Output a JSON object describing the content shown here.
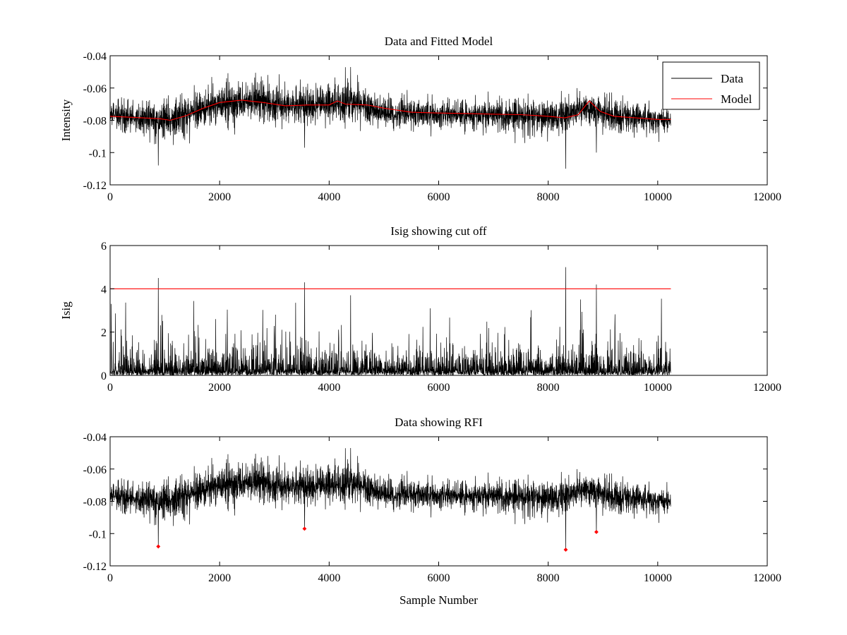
{
  "chart_data": [
    {
      "type": "line",
      "title": "Data and Fitted Model",
      "xlabel": "",
      "ylabel": "Intensity",
      "xlim": [
        0,
        12000
      ],
      "ylim": [
        -0.12,
        -0.04
      ],
      "xticks": [
        0,
        2000,
        4000,
        6000,
        8000,
        10000,
        12000
      ],
      "yticks": [
        -0.12,
        -0.1,
        -0.08,
        -0.06,
        -0.04
      ],
      "xtick_labels": [
        "0",
        "2000",
        "4000",
        "6000",
        "8000",
        "10000",
        "12000"
      ],
      "ytick_labels": [
        "-0.12",
        "-0.1",
        "-0.08",
        "-0.06",
        "-0.04"
      ],
      "legend": {
        "position": "top-right",
        "entries": [
          "Data",
          "Model"
        ]
      },
      "series": [
        {
          "name": "Data",
          "color": "#000000",
          "style": "noisy",
          "n_samples": 10240,
          "baseline": [
            [
              0,
              -0.077
            ],
            [
              1000,
              -0.08
            ],
            [
              2000,
              -0.07
            ],
            [
              2400,
              -0.068
            ],
            [
              3200,
              -0.071
            ],
            [
              4000,
              -0.07
            ],
            [
              4400,
              -0.069
            ],
            [
              5000,
              -0.075
            ],
            [
              6000,
              -0.076
            ],
            [
              7000,
              -0.077
            ],
            [
              8000,
              -0.078
            ],
            [
              8300,
              -0.077
            ],
            [
              8700,
              -0.072
            ],
            [
              9000,
              -0.077
            ],
            [
              10240,
              -0.08
            ]
          ],
          "envelope": [
            [
              0,
              -0.063,
              -0.092
            ],
            [
              800,
              -0.063,
              -0.101
            ],
            [
              2300,
              -0.049,
              -0.09
            ],
            [
              4400,
              -0.047,
              -0.09
            ],
            [
              6000,
              -0.063,
              -0.09
            ],
            [
              8300,
              -0.061,
              -0.106
            ],
            [
              8800,
              -0.058,
              -0.094
            ],
            [
              10240,
              -0.068,
              -0.095
            ]
          ],
          "spikes": [
            [
              880,
              -0.108
            ],
            [
              3550,
              -0.097
            ],
            [
              4390,
              -0.047
            ],
            [
              8320,
              -0.11
            ],
            [
              8880,
              -0.1
            ]
          ]
        },
        {
          "name": "Model",
          "color": "#ff0000",
          "x": [
            0,
            300,
            600,
            900,
            1100,
            1400,
            1700,
            2000,
            2400,
            2800,
            3200,
            3600,
            4000,
            4150,
            4300,
            4700,
            5000,
            5500,
            6000,
            6500,
            7000,
            7500,
            8000,
            8300,
            8550,
            8750,
            8950,
            9200,
            9600,
            10000,
            10240
          ],
          "y": [
            -0.0775,
            -0.078,
            -0.0785,
            -0.079,
            -0.08,
            -0.077,
            -0.0725,
            -0.069,
            -0.0675,
            -0.069,
            -0.071,
            -0.0705,
            -0.0705,
            -0.068,
            -0.07,
            -0.0705,
            -0.0725,
            -0.075,
            -0.0755,
            -0.0758,
            -0.0762,
            -0.0765,
            -0.0775,
            -0.0785,
            -0.0765,
            -0.068,
            -0.0745,
            -0.0775,
            -0.0785,
            -0.0795,
            -0.0795
          ]
        }
      ]
    },
    {
      "type": "line",
      "title": "Isig showing cut off",
      "xlabel": "",
      "ylabel": "Isig",
      "xlim": [
        0,
        12000
      ],
      "ylim": [
        0,
        6
      ],
      "xticks": [
        0,
        2000,
        4000,
        6000,
        8000,
        10000,
        12000
      ],
      "yticks": [
        0,
        2,
        4,
        6
      ],
      "xtick_labels": [
        "0",
        "2000",
        "4000",
        "6000",
        "8000",
        "10000",
        "12000"
      ],
      "ytick_labels": [
        "0",
        "2",
        "4",
        "6"
      ],
      "series": [
        {
          "color": "#000000",
          "style": "abs-noise",
          "n_samples": 10240,
          "typical_max": 2.0,
          "spikes": [
            [
              20,
              3.3
            ],
            [
              880,
              4.5
            ],
            [
              3550,
              4.3
            ],
            [
              4390,
              3.7
            ],
            [
              8320,
              5.0
            ],
            [
              8880,
              4.2
            ]
          ]
        },
        {
          "color": "#ff0000",
          "x": [
            0,
            10240
          ],
          "y": [
            4,
            4
          ]
        }
      ]
    },
    {
      "type": "line",
      "title": "Data showing RFI",
      "xlabel": "Sample Number",
      "ylabel": "",
      "xlim": [
        0,
        12000
      ],
      "ylim": [
        -0.12,
        -0.04
      ],
      "xticks": [
        0,
        2000,
        4000,
        6000,
        8000,
        10000,
        12000
      ],
      "yticks": [
        -0.12,
        -0.1,
        -0.08,
        -0.06,
        -0.04
      ],
      "xtick_labels": [
        "0",
        "2000",
        "4000",
        "6000",
        "8000",
        "10000",
        "12000"
      ],
      "ytick_labels": [
        "-0.12",
        "-0.1",
        "-0.08",
        "-0.06",
        "-0.04"
      ],
      "series": [
        {
          "color": "#000000",
          "style": "noisy",
          "n_samples": 10240,
          "baseline": [
            [
              0,
              -0.077
            ],
            [
              1000,
              -0.08
            ],
            [
              2000,
              -0.07
            ],
            [
              2400,
              -0.068
            ],
            [
              3200,
              -0.071
            ],
            [
              4000,
              -0.07
            ],
            [
              4400,
              -0.069
            ],
            [
              5000,
              -0.075
            ],
            [
              6000,
              -0.076
            ],
            [
              7000,
              -0.077
            ],
            [
              8000,
              -0.078
            ],
            [
              8300,
              -0.077
            ],
            [
              8700,
              -0.072
            ],
            [
              9000,
              -0.077
            ],
            [
              10240,
              -0.08
            ]
          ],
          "envelope": [
            [
              0,
              -0.063,
              -0.092
            ],
            [
              800,
              -0.063,
              -0.101
            ],
            [
              2300,
              -0.049,
              -0.09
            ],
            [
              4400,
              -0.047,
              -0.09
            ],
            [
              6000,
              -0.063,
              -0.09
            ],
            [
              8300,
              -0.061,
              -0.106
            ],
            [
              8800,
              -0.058,
              -0.094
            ],
            [
              10240,
              -0.068,
              -0.095
            ]
          ],
          "spikes": [
            [
              880,
              -0.108
            ],
            [
              3550,
              -0.097
            ],
            [
              4390,
              -0.047
            ],
            [
              8320,
              -0.11
            ],
            [
              8880,
              -0.1
            ]
          ]
        }
      ],
      "markers": {
        "color": "#ff0000",
        "points": [
          [
            880,
            -0.108
          ],
          [
            3550,
            -0.097
          ],
          [
            8320,
            -0.11
          ],
          [
            8880,
            -0.099
          ]
        ]
      }
    }
  ]
}
